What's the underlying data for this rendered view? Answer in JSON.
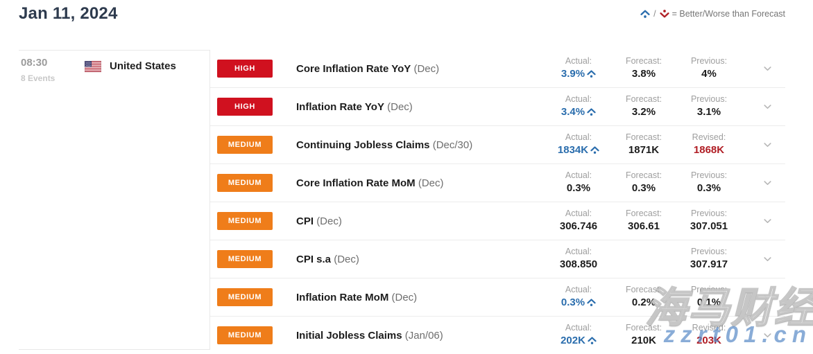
{
  "header": {
    "date_title": "Jan 11, 2024",
    "legend": {
      "separator": "/",
      "text": "= Better/Worse than Forecast"
    }
  },
  "group": {
    "time": "08:30",
    "events_count": "8 Events",
    "country": "United States"
  },
  "colors": {
    "high_badge": "#d0111f",
    "medium_badge": "#ef7d1a",
    "better_value": "#2a6dad",
    "worse_value": "#b01d24",
    "revised_value": "#b01d24",
    "normal_value": "#1c1c1c"
  },
  "rows": [
    {
      "importance": "HIGH",
      "level": "high",
      "title": "Core Inflation Rate YoY",
      "period": "(Dec)",
      "cells": [
        {
          "label": "Actual:",
          "value": "3.9%",
          "arrow": "up",
          "tone": "better"
        },
        {
          "label": "Forecast:",
          "value": "3.8%",
          "arrow": "",
          "tone": ""
        },
        {
          "label": "Previous:",
          "value": "4%",
          "arrow": "",
          "tone": ""
        }
      ]
    },
    {
      "importance": "HIGH",
      "level": "high",
      "title": "Inflation Rate YoY",
      "period": "(Dec)",
      "cells": [
        {
          "label": "Actual:",
          "value": "3.4%",
          "arrow": "up",
          "tone": "better"
        },
        {
          "label": "Forecast:",
          "value": "3.2%",
          "arrow": "",
          "tone": ""
        },
        {
          "label": "Previous:",
          "value": "3.1%",
          "arrow": "",
          "tone": ""
        }
      ]
    },
    {
      "importance": "MEDIUM",
      "level": "medium",
      "title": "Continuing Jobless Claims",
      "period": "(Dec/30)",
      "cells": [
        {
          "label": "Actual:",
          "value": "1834K",
          "arrow": "up",
          "tone": "better"
        },
        {
          "label": "Forecast:",
          "value": "1871K",
          "arrow": "",
          "tone": ""
        },
        {
          "label": "Revised:",
          "value": "1868K",
          "arrow": "",
          "tone": "revised"
        }
      ]
    },
    {
      "importance": "MEDIUM",
      "level": "medium",
      "title": "Core Inflation Rate MoM",
      "period": "(Dec)",
      "cells": [
        {
          "label": "Actual:",
          "value": "0.3%",
          "arrow": "",
          "tone": ""
        },
        {
          "label": "Forecast:",
          "value": "0.3%",
          "arrow": "",
          "tone": ""
        },
        {
          "label": "Previous:",
          "value": "0.3%",
          "arrow": "",
          "tone": ""
        }
      ]
    },
    {
      "importance": "MEDIUM",
      "level": "medium",
      "title": "CPI",
      "period": "(Dec)",
      "cells": [
        {
          "label": "Actual:",
          "value": "306.746",
          "arrow": "",
          "tone": ""
        },
        {
          "label": "Forecast:",
          "value": "306.61",
          "arrow": "",
          "tone": ""
        },
        {
          "label": "Previous:",
          "value": "307.051",
          "arrow": "",
          "tone": ""
        }
      ]
    },
    {
      "importance": "MEDIUM",
      "level": "medium",
      "title": "CPI s.a",
      "period": "(Dec)",
      "cells": [
        {
          "label": "Actual:",
          "value": "308.850",
          "arrow": "",
          "tone": ""
        },
        {
          "label": "",
          "value": "",
          "arrow": "",
          "tone": ""
        },
        {
          "label": "Previous:",
          "value": "307.917",
          "arrow": "",
          "tone": ""
        }
      ]
    },
    {
      "importance": "MEDIUM",
      "level": "medium",
      "title": "Inflation Rate MoM",
      "period": "(Dec)",
      "cells": [
        {
          "label": "Actual:",
          "value": "0.3%",
          "arrow": "up",
          "tone": "better"
        },
        {
          "label": "Forecast:",
          "value": "0.2%",
          "arrow": "",
          "tone": ""
        },
        {
          "label": "Previous:",
          "value": "0.1%",
          "arrow": "",
          "tone": ""
        }
      ]
    },
    {
      "importance": "MEDIUM",
      "level": "medium",
      "title": "Initial Jobless Claims",
      "period": "(Jan/06)",
      "cells": [
        {
          "label": "Actual:",
          "value": "202K",
          "arrow": "up",
          "tone": "better"
        },
        {
          "label": "Forecast:",
          "value": "210K",
          "arrow": "",
          "tone": ""
        },
        {
          "label": "Revised:",
          "value": "203K",
          "arrow": "",
          "tone": "revised"
        }
      ]
    }
  ],
  "watermark": {
    "brand": "海马财经",
    "site": "zzrt01.cn"
  }
}
